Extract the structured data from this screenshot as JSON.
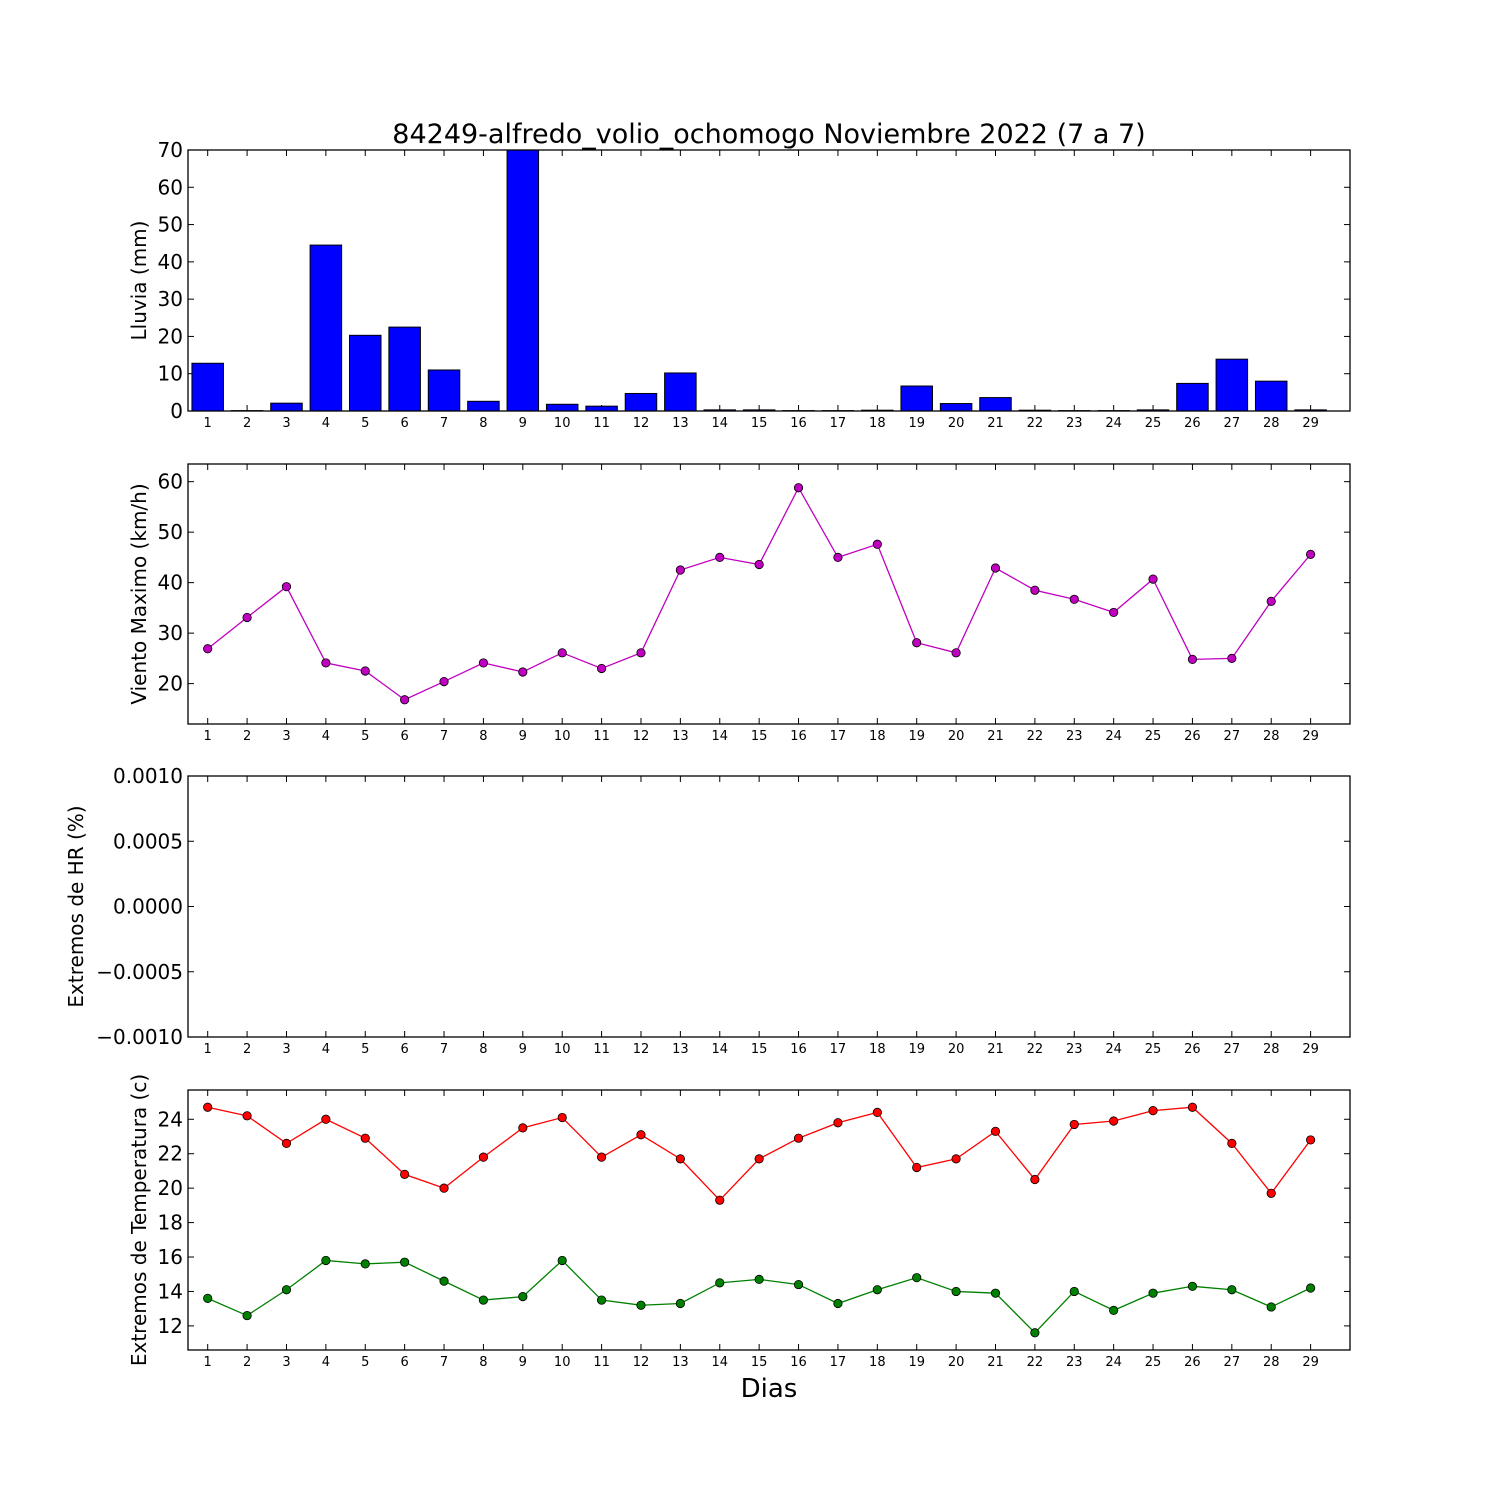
{
  "title": "84249-alfredo_volio_ochomogo Noviembre 2022  (7 a 7)",
  "xlabel": "Dias",
  "chart_data": [
    {
      "type": "bar",
      "ylabel": "Lluvia (mm)",
      "x": [
        1,
        2,
        3,
        4,
        5,
        6,
        7,
        8,
        9,
        10,
        11,
        12,
        13,
        14,
        15,
        16,
        17,
        18,
        19,
        20,
        21,
        22,
        23,
        24,
        25,
        26,
        27,
        28,
        29
      ],
      "ylim": [
        0,
        70
      ],
      "yticks": [
        0,
        10,
        20,
        30,
        40,
        50,
        60,
        70
      ],
      "ytick_labels": [
        "0",
        "10",
        "20",
        "30",
        "40",
        "50",
        "60",
        "70"
      ],
      "color": "#0000ff",
      "values": [
        12.8,
        0,
        2.1,
        44.5,
        20.3,
        22.5,
        11.0,
        2.6,
        70.0,
        1.8,
        1.3,
        4.7,
        10.2,
        0.3,
        0.3,
        0,
        0,
        0.1,
        6.7,
        2.0,
        3.6,
        0.2,
        0,
        0,
        0.3,
        7.4,
        13.9,
        8.0,
        0.3
      ]
    },
    {
      "type": "line",
      "ylabel": "Viento Maximo (km/h)",
      "x": [
        1,
        2,
        3,
        4,
        5,
        6,
        7,
        8,
        9,
        10,
        11,
        12,
        13,
        14,
        15,
        16,
        17,
        18,
        19,
        20,
        21,
        22,
        23,
        24,
        25,
        26,
        27,
        28,
        29
      ],
      "ylim": [
        12,
        63.5
      ],
      "yticks": [
        20,
        30,
        40,
        50,
        60
      ],
      "ytick_labels": [
        "20",
        "30",
        "40",
        "50",
        "60"
      ],
      "series": [
        {
          "color": "#bf00bf",
          "values": [
            26.9,
            33.1,
            39.2,
            24.1,
            22.5,
            16.8,
            20.4,
            24.1,
            22.3,
            26.1,
            23.0,
            26.1,
            42.5,
            45.0,
            43.6,
            58.8,
            45.0,
            47.6,
            28.1,
            26.1,
            42.9,
            38.5,
            36.7,
            34.1,
            40.7,
            24.8,
            25.0,
            36.3,
            45.6
          ]
        }
      ]
    },
    {
      "type": "line",
      "ylabel": "Extremos de HR (%)",
      "x": [
        1,
        2,
        3,
        4,
        5,
        6,
        7,
        8,
        9,
        10,
        11,
        12,
        13,
        14,
        15,
        16,
        17,
        18,
        19,
        20,
        21,
        22,
        23,
        24,
        25,
        26,
        27,
        28,
        29
      ],
      "ylim": [
        -0.001,
        0.001
      ],
      "yticks": [
        -0.001,
        -0.0005,
        0,
        0.0005,
        0.001
      ],
      "ytick_labels": [
        "−0.0010",
        "−0.0005",
        "0.0000",
        "0.0005",
        "0.0010"
      ],
      "series": []
    },
    {
      "type": "line",
      "ylabel": "Extremos de Temperatura (c)",
      "x": [
        1,
        2,
        3,
        4,
        5,
        6,
        7,
        8,
        9,
        10,
        11,
        12,
        13,
        14,
        15,
        16,
        17,
        18,
        19,
        20,
        21,
        22,
        23,
        24,
        25,
        26,
        27,
        28,
        29
      ],
      "ylim": [
        10.6,
        25.7
      ],
      "yticks": [
        12,
        14,
        16,
        18,
        20,
        22,
        24
      ],
      "ytick_labels": [
        "12",
        "14",
        "16",
        "18",
        "20",
        "22",
        "24"
      ],
      "series": [
        {
          "color": "#ff0000",
          "values": [
            24.7,
            24.2,
            22.6,
            24.0,
            22.9,
            20.8,
            20.0,
            21.8,
            23.5,
            24.1,
            21.8,
            23.1,
            21.7,
            19.3,
            21.7,
            22.9,
            23.8,
            24.4,
            21.2,
            21.7,
            23.3,
            20.5,
            23.7,
            23.9,
            24.5,
            24.7,
            22.6,
            19.7,
            22.8
          ]
        },
        {
          "color": "#008000",
          "values": [
            13.6,
            12.6,
            14.1,
            15.8,
            15.6,
            15.7,
            14.6,
            13.5,
            13.7,
            15.8,
            13.5,
            13.2,
            13.3,
            14.5,
            14.7,
            14.4,
            13.3,
            14.1,
            14.8,
            14.0,
            13.9,
            11.6,
            14.0,
            12.9,
            13.9,
            14.3,
            14.1,
            13.1,
            14.2
          ]
        }
      ]
    }
  ]
}
